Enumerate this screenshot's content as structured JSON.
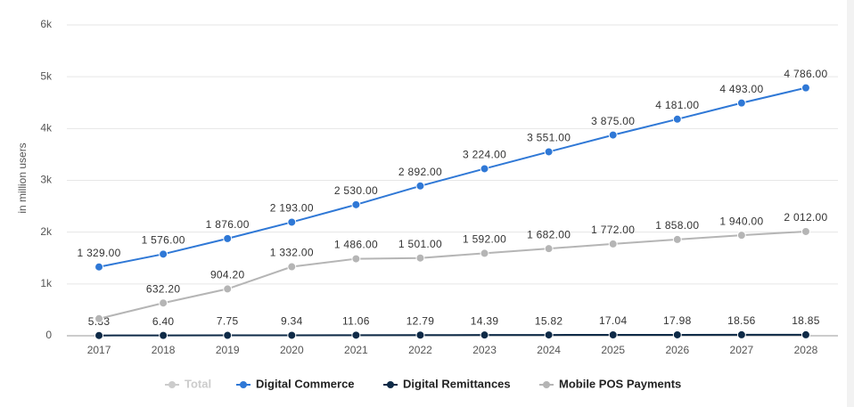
{
  "chart_data": {
    "type": "line",
    "y_axis_label": "in million users",
    "categories": [
      "2017",
      "2018",
      "2019",
      "2020",
      "2021",
      "2022",
      "2023",
      "2024",
      "2025",
      "2026",
      "2027",
      "2028"
    ],
    "series": [
      {
        "name": "Total",
        "color": "#cccccc",
        "visible": false,
        "values": [
          null,
          null,
          null,
          null,
          null,
          null,
          null,
          null,
          null,
          null,
          null,
          null
        ]
      },
      {
        "name": "Digital Commerce",
        "color": "#2f78d6",
        "visible": true,
        "values": [
          1329,
          1576,
          1876,
          2193,
          2530,
          2892,
          3224,
          3551,
          3875,
          4181,
          4493,
          4786
        ],
        "value_labels": [
          "1 329.00",
          "1 576.00",
          "1 876.00",
          "2 193.00",
          "2 530.00",
          "2 892.00",
          "3 224.00",
          "3 551.00",
          "3 875.00",
          "4 181.00",
          "4 493.00",
          "4 786.00"
        ]
      },
      {
        "name": "Digital Remittances",
        "color": "#0e2a47",
        "visible": true,
        "values": [
          5.33,
          6.4,
          7.75,
          9.34,
          11.06,
          12.79,
          14.39,
          15.82,
          17.04,
          17.98,
          18.56,
          18.85
        ],
        "value_labels": [
          "5.33",
          "6.40",
          "7.75",
          "9.34",
          "11.06",
          "12.79",
          "14.39",
          "15.82",
          "17.04",
          "17.98",
          "18.56",
          "18.85"
        ]
      },
      {
        "name": "Mobile POS Payments",
        "color": "#b5b5b5",
        "visible": true,
        "values": [
          330,
          632.2,
          904.2,
          1332,
          1486,
          1501,
          1592,
          1682,
          1772,
          1858,
          1940,
          2012
        ],
        "value_labels": [
          null,
          "632.20",
          "904.20",
          "1 332.00",
          "1 486.00",
          "1 501.00",
          "1 592.00",
          "1 682.00",
          "1 772.00",
          "1 858.00",
          "1 940.00",
          "2 012.00"
        ]
      }
    ],
    "ylim": [
      0,
      6000
    ],
    "yticks": [
      0,
      {
        "value": 1000,
        "label": "1k"
      },
      {
        "value": 2000,
        "label": "2k"
      },
      {
        "value": 3000,
        "label": "3k"
      },
      {
        "value": 4000,
        "label": "4k"
      },
      {
        "value": 5000,
        "label": "5k"
      },
      {
        "value": 6000,
        "label": "6k"
      }
    ],
    "grid": true,
    "legend": "bottom"
  }
}
